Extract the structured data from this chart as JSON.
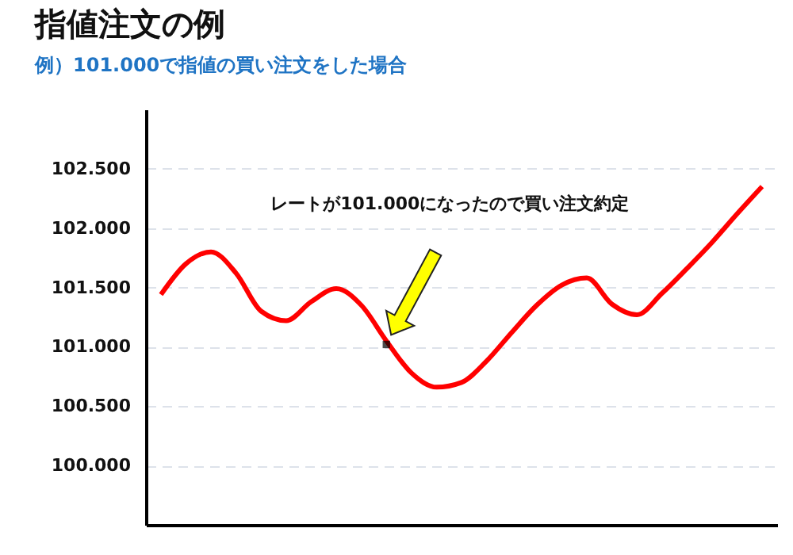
{
  "chart_data": {
    "type": "line",
    "title": "指値注文の例",
    "subtitle": "例）101.000で指値の買い注文をした場合",
    "annotations": [
      "レートが101.000になったので買い注文約定"
    ],
    "categories": [
      null,
      null,
      null,
      null,
      null,
      null,
      null,
      null,
      null,
      null,
      null,
      null,
      null,
      null,
      null,
      null,
      null,
      null,
      null,
      null,
      null,
      null,
      null,
      null,
      null
    ],
    "series": [
      {
        "type": "line",
        "color": "#ff0000",
        "values": [
          101.44,
          101.7,
          101.8,
          101.62,
          101.3,
          101.22,
          101.38,
          101.49,
          101.35,
          101.05,
          100.78,
          100.66,
          100.7,
          100.88,
          101.12,
          101.35,
          101.52,
          101.58,
          101.36,
          101.27,
          101.45,
          101.66,
          101.88,
          102.12,
          102.35
        ]
      },
      {
        "type": "scatter",
        "color": "#000000",
        "marker": "square",
        "values": [
          null,
          null,
          null,
          null,
          null,
          null,
          null,
          null,
          null,
          101.02,
          null,
          null,
          null,
          null,
          null,
          null,
          null,
          null,
          null,
          null,
          null,
          null,
          null,
          null,
          null
        ]
      }
    ],
    "ylim": [
      99.5,
      103
    ],
    "yticks": [
      {
        "value": 100,
        "label": "100.000"
      },
      {
        "value": 100.5,
        "label": "100.500"
      },
      {
        "value": 101,
        "label": "101.000"
      },
      {
        "value": 101.5,
        "label": "101.500"
      },
      {
        "value": 102,
        "label": "102.000"
      },
      {
        "value": 102.5,
        "label": "102.500"
      }
    ],
    "grid": "y",
    "tick_labels": "y"
  }
}
